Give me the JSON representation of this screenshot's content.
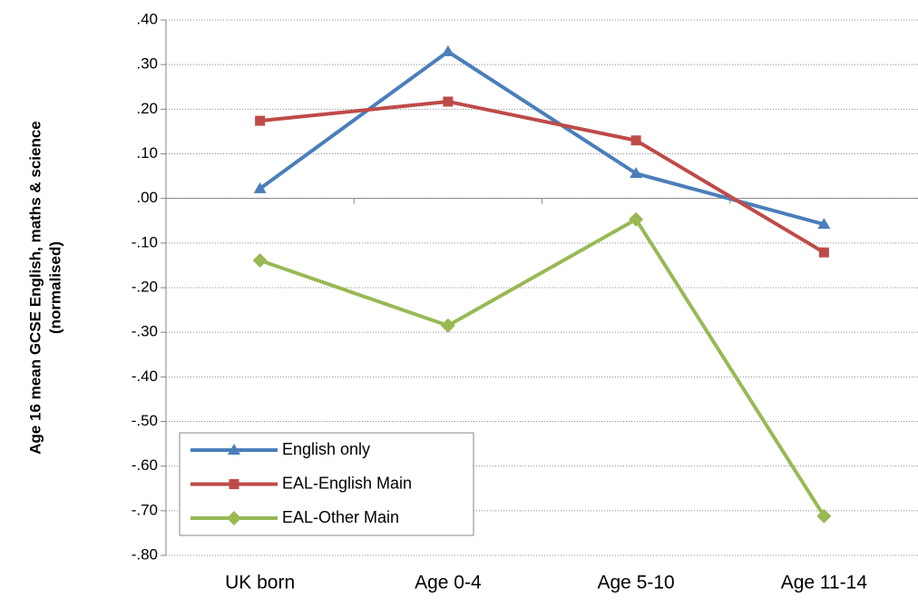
{
  "chart_data": {
    "type": "line",
    "ylabel": [
      "Age 16 mean GCSE English, maths & science",
      "(normalised)"
    ],
    "categories": [
      "UK born",
      "Age 0-4",
      "Age 5-10",
      "Age 11-14"
    ],
    "series": [
      {
        "name": "English only",
        "color": "#4a7ebb",
        "marker": "triangle",
        "values": [
          0.022,
          0.329,
          0.056,
          -0.058
        ]
      },
      {
        "name": "EAL-English Main",
        "color": "#be4b48",
        "marker": "square",
        "values": [
          0.174,
          0.217,
          0.13,
          -0.121
        ]
      },
      {
        "name": "EAL-Other Main",
        "color": "#98b954",
        "marker": "diamond",
        "values": [
          -0.139,
          -0.285,
          -0.047,
          -0.712
        ]
      }
    ],
    "ylim": [
      -0.8,
      0.4
    ],
    "yticks": [
      {
        "value": 0.4,
        "label": ".40"
      },
      {
        "value": 0.3,
        "label": ".30"
      },
      {
        "value": 0.2,
        "label": ".20"
      },
      {
        "value": 0.1,
        "label": ".10"
      },
      {
        "value": 0,
        "label": ".00"
      },
      {
        "value": -0.1,
        "label": "-.10"
      },
      {
        "value": -0.2,
        "label": "-.20"
      },
      {
        "value": -0.3,
        "label": "-.30"
      },
      {
        "value": -0.4,
        "label": "-.40"
      },
      {
        "value": -0.5,
        "label": "-.50"
      },
      {
        "value": -0.6,
        "label": "-.60"
      },
      {
        "value": -0.7,
        "label": "-.70"
      },
      {
        "value": -0.8,
        "label": "-.80"
      }
    ],
    "grid": true,
    "legend": "lower left"
  }
}
